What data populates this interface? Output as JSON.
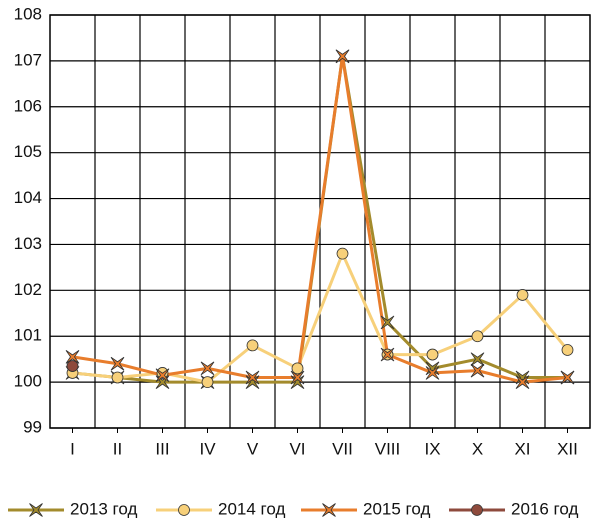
{
  "chart_data": {
    "type": "line",
    "categories": [
      "I",
      "II",
      "III",
      "IV",
      "V",
      "VI",
      "VII",
      "VIII",
      "IX",
      "X",
      "XI",
      "XII"
    ],
    "series": [
      {
        "name": "2013 год",
        "color": "#a38b2c",
        "marker": "star",
        "values": [
          100.2,
          100.1,
          100.0,
          100.0,
          100.0,
          100.0,
          107.1,
          101.3,
          100.3,
          100.5,
          100.1,
          100.1
        ]
      },
      {
        "name": "2014 год",
        "color": "#f7d07a",
        "marker": "circle",
        "values": [
          100.2,
          100.1,
          100.2,
          100.0,
          100.8,
          100.3,
          102.8,
          100.6,
          100.6,
          101.0,
          101.9,
          100.7
        ]
      },
      {
        "name": "2015 год",
        "color": "#e87d2c",
        "marker": "star",
        "values": [
          100.55,
          100.4,
          100.15,
          100.3,
          100.1,
          100.1,
          107.1,
          100.6,
          100.2,
          100.25,
          100.0,
          100.1
        ]
      },
      {
        "name": "2016 год",
        "color": "#8e4a3c",
        "marker": "circle",
        "values": [
          100.35,
          null,
          null,
          null,
          null,
          null,
          null,
          null,
          null,
          null,
          null,
          null
        ]
      }
    ],
    "ylim": [
      99,
      108
    ],
    "yticks": [
      99,
      100,
      101,
      102,
      103,
      104,
      105,
      106,
      107,
      108
    ],
    "grid": true,
    "legend": "bottom"
  }
}
